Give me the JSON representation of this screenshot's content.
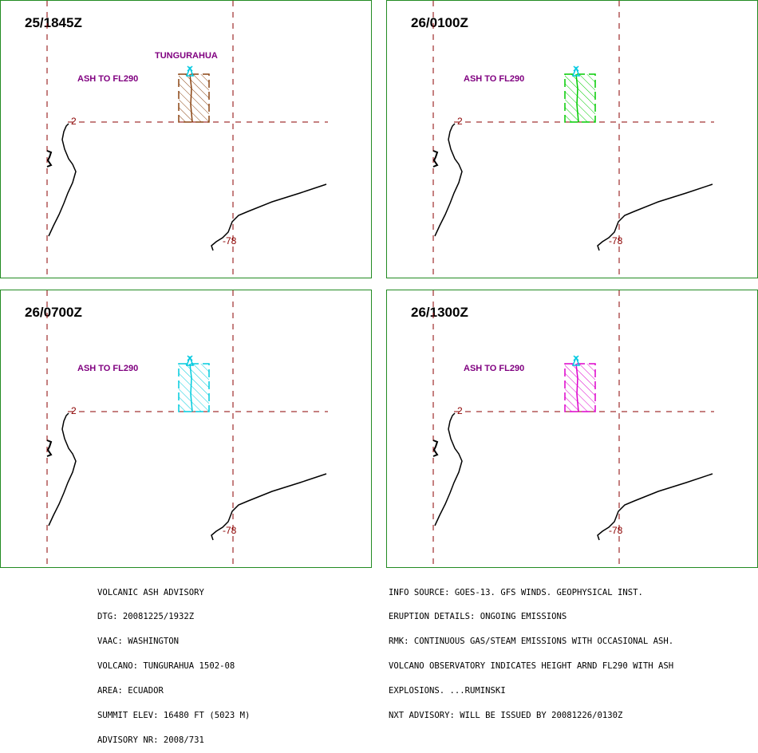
{
  "colors": {
    "frame": "#228b22",
    "grid": "#8b0000",
    "ash_label": "#800080",
    "volcano_label": "#800080",
    "volcano_marker": "#00c8e0",
    "coast": "#000000"
  },
  "grid_labels": {
    "lat": "-2",
    "lon": "-78"
  },
  "volcano_name": "TUNGURAHUA",
  "panels": [
    {
      "time": "25/1845Z",
      "ash_label": "ASH TO FL290",
      "plume_color": "#8b4513",
      "show_volcano_name": true
    },
    {
      "time": "26/0100Z",
      "ash_label": "ASH TO FL290",
      "plume_color": "#00cc00",
      "show_volcano_name": false
    },
    {
      "time": "26/0700Z",
      "ash_label": "ASH TO FL290",
      "plume_color": "#00ccdd",
      "show_volcano_name": false
    },
    {
      "time": "26/1300Z",
      "ash_label": "ASH TO FL290",
      "plume_color": "#dd00cc",
      "show_volcano_name": false
    }
  ],
  "advisory_left": [
    "VOLCANIC ASH ADVISORY",
    "DTG: 20081225/1932Z",
    "VAAC: WASHINGTON",
    "VOLCANO: TUNGURAHUA 1502-08",
    "AREA: ECUADOR",
    "SUMMIT ELEV: 16480 FT (5023 M)",
    "ADVISORY NR: 2008/731"
  ],
  "advisory_right": [
    "INFO SOURCE: GOES-13. GFS WINDS. GEOPHYSICAL INST.",
    "ERUPTION DETAILS: ONGOING EMISSIONS",
    "RMK: CONTINUOUS GAS/STEAM EMISSIONS WITH OCCASIONAL ASH.",
    "VOLCANO OBSERVATORY INDICATES HEIGHT ARND FL290 WITH ASH",
    "EXPLOSIONS. ...RUMINSKI",
    "NXT ADVISORY: WILL BE ISSUED BY 20081226/0130Z"
  ]
}
